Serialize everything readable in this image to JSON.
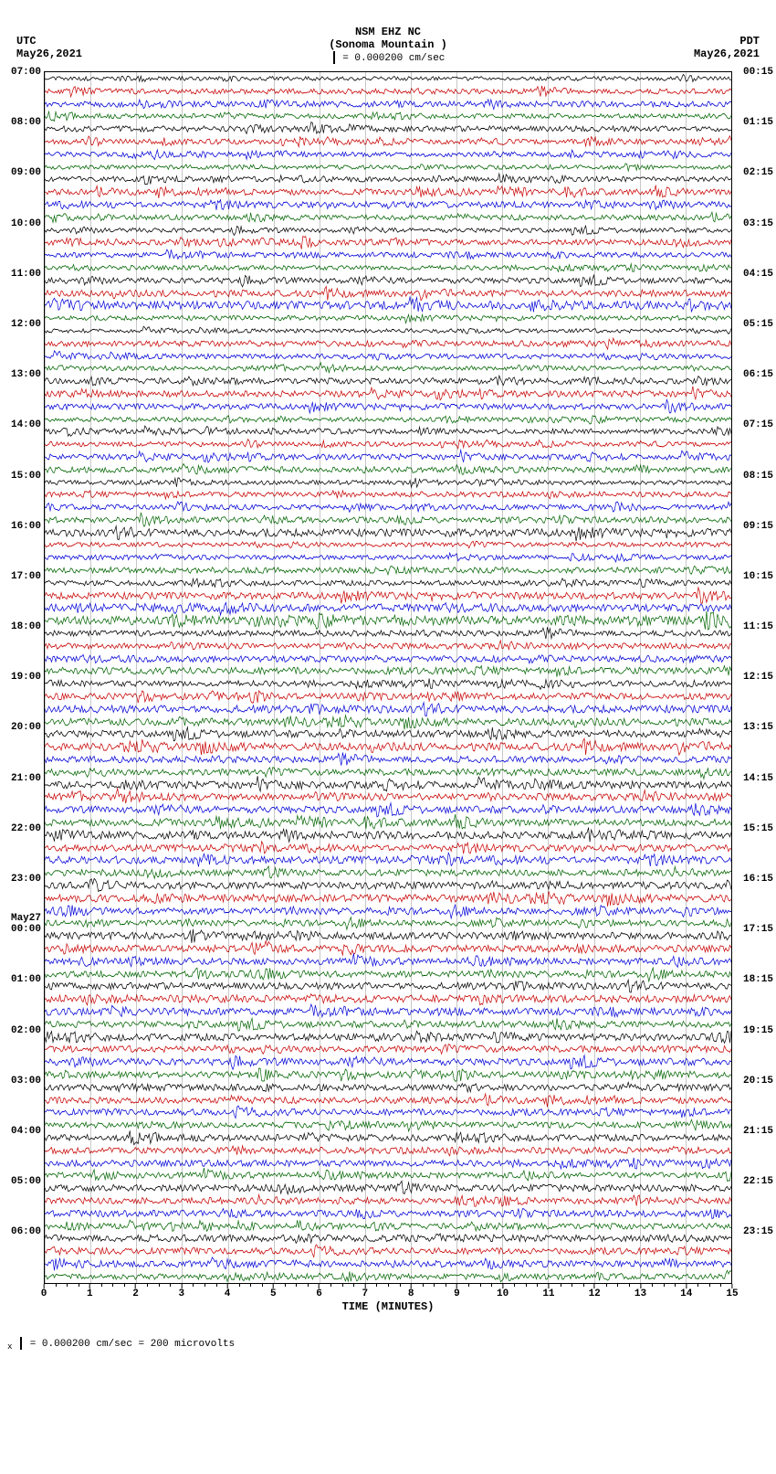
{
  "header": {
    "station": "NSM EHZ NC",
    "location": "(Sonoma Mountain )",
    "left_tz": "UTC",
    "left_date": "May26,2021",
    "right_tz": "PDT",
    "right_date": "May26,2021",
    "scale_text": " = 0.000200 cm/sec"
  },
  "trace_colors": [
    "#000000",
    "#c80000",
    "#0000d8",
    "#006400"
  ],
  "plot": {
    "xlabel": "TIME (MINUTES)",
    "x_min": 0,
    "x_max": 15,
    "x_ticks": [
      0,
      1,
      2,
      3,
      4,
      5,
      6,
      7,
      8,
      9,
      10,
      11,
      12,
      13,
      14,
      15
    ],
    "grid_color": "rgba(0,0,0,0.22)"
  },
  "rows": [
    {
      "left": "07:00",
      "right": "00:15",
      "c": 0,
      "a": 0.7
    },
    {
      "left": "",
      "right": "",
      "c": 1,
      "a": 0.9
    },
    {
      "left": "",
      "right": "",
      "c": 2,
      "a": 1.0
    },
    {
      "left": "",
      "right": "",
      "c": 3,
      "a": 0.8
    },
    {
      "left": "08:00",
      "right": "01:15",
      "c": 0,
      "a": 1.0
    },
    {
      "left": "",
      "right": "",
      "c": 1,
      "a": 0.9
    },
    {
      "left": "",
      "right": "",
      "c": 2,
      "a": 0.8
    },
    {
      "left": "",
      "right": "",
      "c": 3,
      "a": 0.7
    },
    {
      "left": "09:00",
      "right": "02:15",
      "c": 0,
      "a": 0.9
    },
    {
      "left": "",
      "right": "",
      "c": 1,
      "a": 1.0
    },
    {
      "left": "",
      "right": "",
      "c": 2,
      "a": 1.1
    },
    {
      "left": "",
      "right": "",
      "c": 3,
      "a": 0.9
    },
    {
      "left": "10:00",
      "right": "03:15",
      "c": 0,
      "a": 0.8
    },
    {
      "left": "",
      "right": "",
      "c": 1,
      "a": 1.0
    },
    {
      "left": "",
      "right": "",
      "c": 2,
      "a": 0.9
    },
    {
      "left": "",
      "right": "",
      "c": 3,
      "a": 0.8
    },
    {
      "left": "11:00",
      "right": "04:15",
      "c": 0,
      "a": 1.0
    },
    {
      "left": "",
      "right": "",
      "c": 1,
      "a": 1.1
    },
    {
      "left": "",
      "right": "",
      "c": 2,
      "a": 1.4
    },
    {
      "left": "",
      "right": "",
      "c": 3,
      "a": 0.8
    },
    {
      "left": "12:00",
      "right": "05:15",
      "c": 0,
      "a": 0.7
    },
    {
      "left": "",
      "right": "",
      "c": 1,
      "a": 1.0
    },
    {
      "left": "",
      "right": "",
      "c": 2,
      "a": 0.9
    },
    {
      "left": "",
      "right": "",
      "c": 3,
      "a": 0.8
    },
    {
      "left": "13:00",
      "right": "06:15",
      "c": 0,
      "a": 1.0
    },
    {
      "left": "",
      "right": "",
      "c": 1,
      "a": 1.1
    },
    {
      "left": "",
      "right": "",
      "c": 2,
      "a": 1.0
    },
    {
      "left": "",
      "right": "",
      "c": 3,
      "a": 0.8
    },
    {
      "left": "14:00",
      "right": "07:15",
      "c": 0,
      "a": 0.9
    },
    {
      "left": "",
      "right": "",
      "c": 1,
      "a": 0.8
    },
    {
      "left": "",
      "right": "",
      "c": 2,
      "a": 1.0
    },
    {
      "left": "",
      "right": "",
      "c": 3,
      "a": 1.0
    },
    {
      "left": "15:00",
      "right": "08:15",
      "c": 0,
      "a": 0.8
    },
    {
      "left": "",
      "right": "",
      "c": 1,
      "a": 0.9
    },
    {
      "left": "",
      "right": "",
      "c": 2,
      "a": 0.9
    },
    {
      "left": "",
      "right": "",
      "c": 3,
      "a": 1.0
    },
    {
      "left": "16:00",
      "right": "09:15",
      "c": 0,
      "a": 1.3
    },
    {
      "left": "",
      "right": "",
      "c": 1,
      "a": 0.8
    },
    {
      "left": "",
      "right": "",
      "c": 2,
      "a": 0.8
    },
    {
      "left": "",
      "right": "",
      "c": 3,
      "a": 1.0
    },
    {
      "left": "17:00",
      "right": "10:15",
      "c": 0,
      "a": 0.9
    },
    {
      "left": "",
      "right": "",
      "c": 1,
      "a": 1.2
    },
    {
      "left": "",
      "right": "",
      "c": 2,
      "a": 1.3
    },
    {
      "left": "",
      "right": "",
      "c": 3,
      "a": 1.5
    },
    {
      "left": "18:00",
      "right": "11:15",
      "c": 0,
      "a": 1.0
    },
    {
      "left": "",
      "right": "",
      "c": 1,
      "a": 1.0
    },
    {
      "left": "",
      "right": "",
      "c": 2,
      "a": 1.1
    },
    {
      "left": "",
      "right": "",
      "c": 3,
      "a": 1.2
    },
    {
      "left": "19:00",
      "right": "12:15",
      "c": 0,
      "a": 1.0
    },
    {
      "left": "",
      "right": "",
      "c": 1,
      "a": 1.1
    },
    {
      "left": "",
      "right": "",
      "c": 2,
      "a": 1.3
    },
    {
      "left": "",
      "right": "",
      "c": 3,
      "a": 1.2
    },
    {
      "left": "20:00",
      "right": "13:15",
      "c": 0,
      "a": 1.2
    },
    {
      "left": "",
      "right": "",
      "c": 1,
      "a": 1.3
    },
    {
      "left": "",
      "right": "",
      "c": 2,
      "a": 1.1
    },
    {
      "left": "",
      "right": "",
      "c": 3,
      "a": 1.1
    },
    {
      "left": "21:00",
      "right": "14:15",
      "c": 0,
      "a": 1.3
    },
    {
      "left": "",
      "right": "",
      "c": 1,
      "a": 1.2
    },
    {
      "left": "",
      "right": "",
      "c": 2,
      "a": 1.2
    },
    {
      "left": "",
      "right": "",
      "c": 3,
      "a": 1.2
    },
    {
      "left": "22:00",
      "right": "15:15",
      "c": 0,
      "a": 1.3
    },
    {
      "left": "",
      "right": "",
      "c": 1,
      "a": 1.2
    },
    {
      "left": "",
      "right": "",
      "c": 2,
      "a": 1.3
    },
    {
      "left": "",
      "right": "",
      "c": 3,
      "a": 1.1
    },
    {
      "left": "23:00",
      "right": "16:15",
      "c": 0,
      "a": 1.2
    },
    {
      "left": "",
      "right": "",
      "c": 1,
      "a": 1.3
    },
    {
      "left": "",
      "right": "",
      "c": 2,
      "a": 1.1
    },
    {
      "left": "",
      "right": "",
      "c": 3,
      "a": 1.0
    },
    {
      "left": "00:00",
      "right": "17:15",
      "c": 0,
      "a": 1.2,
      "day": "May27"
    },
    {
      "left": "",
      "right": "",
      "c": 1,
      "a": 1.2
    },
    {
      "left": "",
      "right": "",
      "c": 2,
      "a": 1.1
    },
    {
      "left": "",
      "right": "",
      "c": 3,
      "a": 1.1
    },
    {
      "left": "01:00",
      "right": "18:15",
      "c": 0,
      "a": 1.2
    },
    {
      "left": "",
      "right": "",
      "c": 1,
      "a": 1.3
    },
    {
      "left": "",
      "right": "",
      "c": 2,
      "a": 1.2
    },
    {
      "left": "",
      "right": "",
      "c": 3,
      "a": 1.1
    },
    {
      "left": "02:00",
      "right": "19:15",
      "c": 0,
      "a": 1.2
    },
    {
      "left": "",
      "right": "",
      "c": 1,
      "a": 1.1
    },
    {
      "left": "",
      "right": "",
      "c": 2,
      "a": 1.2
    },
    {
      "left": "",
      "right": "",
      "c": 3,
      "a": 1.1
    },
    {
      "left": "03:00",
      "right": "20:15",
      "c": 0,
      "a": 1.1
    },
    {
      "left": "",
      "right": "",
      "c": 1,
      "a": 1.1
    },
    {
      "left": "",
      "right": "",
      "c": 2,
      "a": 1.1
    },
    {
      "left": "",
      "right": "",
      "c": 3,
      "a": 1.0
    },
    {
      "left": "04:00",
      "right": "21:15",
      "c": 0,
      "a": 1.1
    },
    {
      "left": "",
      "right": "",
      "c": 1,
      "a": 1.1
    },
    {
      "left": "",
      "right": "",
      "c": 2,
      "a": 1.1
    },
    {
      "left": "",
      "right": "",
      "c": 3,
      "a": 1.0
    },
    {
      "left": "05:00",
      "right": "22:15",
      "c": 0,
      "a": 1.2
    },
    {
      "left": "",
      "right": "",
      "c": 1,
      "a": 1.1
    },
    {
      "left": "",
      "right": "",
      "c": 2,
      "a": 1.1
    },
    {
      "left": "",
      "right": "",
      "c": 3,
      "a": 1.0
    },
    {
      "left": "06:00",
      "right": "23:15",
      "c": 0,
      "a": 1.2
    },
    {
      "left": "",
      "right": "",
      "c": 1,
      "a": 1.1
    },
    {
      "left": "",
      "right": "",
      "c": 2,
      "a": 1.1
    },
    {
      "left": "",
      "right": "",
      "c": 3,
      "a": 1.0
    }
  ],
  "footer": {
    "text": " = 0.000200 cm/sec =    200 microvolts"
  }
}
